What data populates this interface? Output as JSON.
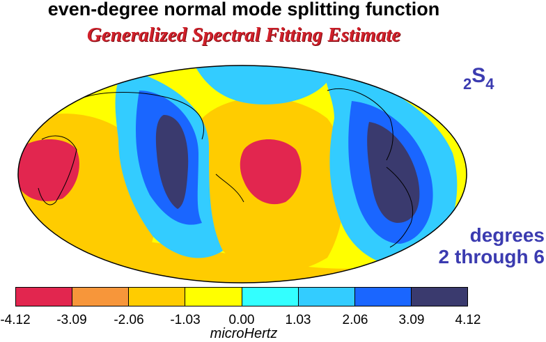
{
  "title": "even-degree normal mode splitting function",
  "subtitle": "Generalized Spectral Fitting Estimate",
  "mode": {
    "prefix": "2",
    "letter": "S",
    "suffix": "4"
  },
  "degrees_line1": "degrees",
  "degrees_line2": "2 through 6",
  "colorbar": {
    "unit": "microHertz",
    "ticks": [
      "-4.12",
      "-3.09",
      "-2.06",
      "-1.03",
      "0.00",
      "1.03",
      "2.06",
      "3.09",
      "4.12"
    ],
    "colors": [
      "#e2264f",
      "#f7963a",
      "#ffcc00",
      "#ffff00",
      "#33ffff",
      "#33ccff",
      "#1a66ff",
      "#3a3a6e"
    ]
  }
}
